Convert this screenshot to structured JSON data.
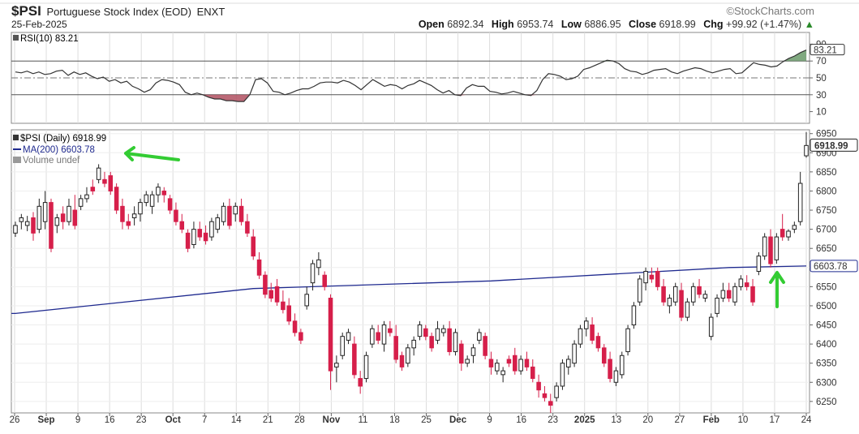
{
  "header": {
    "symbol": "$PSI",
    "description": "Portuguese Stock Index (EOD)",
    "exchange": "ENXT",
    "date": "25-Feb-2025",
    "brand": "©StockCharts.com",
    "open_label": "Open",
    "open": "6892.34",
    "high_label": "High",
    "high": "6953.74",
    "low_label": "Low",
    "low": "6886.95",
    "close_label": "Close",
    "close": "6918.99",
    "chg_label": "Chg",
    "chg": "+99.92 (+1.47%)",
    "chg_arrow": "▲"
  },
  "rsi_panel": {
    "legend": "RSI(10) 83.21",
    "current_label": "83.21",
    "y_ticks": [
      "90",
      "70",
      "50",
      "30",
      "10"
    ]
  },
  "price_panel": {
    "legend_price": "$PSI (Daily) 6918.99",
    "legend_ma": "MA(200) 6603.78",
    "legend_volume": "Volume undef",
    "last_price_label": "6918.99",
    "ma_label": "6603.78",
    "y_ticks": [
      "6950",
      "6900",
      "6850",
      "6800",
      "6750",
      "6700",
      "6650",
      "6600",
      "6550",
      "6500",
      "6450",
      "6400",
      "6350",
      "6300",
      "6250"
    ]
  },
  "x_axis": {
    "ticks": [
      "26",
      "Sep",
      "9",
      "16",
      "23",
      "Oct",
      "7",
      "14",
      "21",
      "28",
      "Nov",
      "11",
      "18",
      "25",
      "Dec",
      "9",
      "16",
      "23",
      "2025",
      "13",
      "20",
      "27",
      "Feb",
      "10",
      "17",
      "24"
    ],
    "bold_ticks": [
      "Sep",
      "Oct",
      "Nov",
      "Dec",
      "2025",
      "Feb"
    ]
  },
  "colors": {
    "up": "#ffffff",
    "down": "#d61f4a",
    "ma_line": "#1f2a8f",
    "rsi_line": "#333333",
    "arrow": "#33cc33",
    "grid": "#dddddd"
  },
  "chart_data": [
    {
      "type": "candlestick",
      "title": "$PSI (Daily) 6918.99",
      "ylim": [
        6220,
        6960
      ],
      "series": [
        {
          "name": "$PSI (Daily)",
          "ohlc": [
            [
              6690,
              6720,
              6680,
              6710
            ],
            [
              6720,
              6740,
              6700,
              6730
            ],
            [
              6710,
              6735,
              6695,
              6720
            ],
            [
              6730,
              6745,
              6670,
              6690
            ],
            [
              6700,
              6780,
              6690,
              6760
            ],
            [
              6720,
              6800,
              6700,
              6770
            ],
            [
              6770,
              6780,
              6640,
              6650
            ],
            [
              6710,
              6740,
              6690,
              6730
            ],
            [
              6740,
              6760,
              6700,
              6720
            ],
            [
              6720,
              6780,
              6710,
              6760
            ],
            [
              6750,
              6790,
              6700,
              6710
            ],
            [
              6760,
              6790,
              6750,
              6780
            ],
            [
              6780,
              6810,
              6770,
              6790
            ],
            [
              6810,
              6830,
              6790,
              6800
            ],
            [
              6830,
              6870,
              6820,
              6860
            ],
            [
              6830,
              6850,
              6810,
              6820
            ],
            [
              6840,
              6850,
              6790,
              6800
            ],
            [
              6810,
              6820,
              6740,
              6750
            ],
            [
              6760,
              6780,
              6700,
              6720
            ],
            [
              6720,
              6740,
              6700,
              6710
            ],
            [
              6730,
              6760,
              6710,
              6740
            ],
            [
              6740,
              6780,
              6720,
              6770
            ],
            [
              6770,
              6800,
              6760,
              6790
            ],
            [
              6760,
              6800,
              6740,
              6790
            ],
            [
              6790,
              6820,
              6770,
              6810
            ],
            [
              6800,
              6810,
              6770,
              6790
            ],
            [
              6780,
              6790,
              6740,
              6750
            ],
            [
              6750,
              6770,
              6710,
              6720
            ],
            [
              6720,
              6740,
              6690,
              6700
            ],
            [
              6690,
              6700,
              6640,
              6650
            ],
            [
              6660,
              6720,
              6650,
              6700
            ],
            [
              6700,
              6720,
              6670,
              6680
            ],
            [
              6690,
              6710,
              6660,
              6670
            ],
            [
              6680,
              6730,
              6670,
              6720
            ],
            [
              6700,
              6740,
              6690,
              6730
            ],
            [
              6720,
              6770,
              6710,
              6760
            ],
            [
              6760,
              6780,
              6700,
              6710
            ],
            [
              6740,
              6770,
              6720,
              6760
            ],
            [
              6760,
              6780,
              6710,
              6720
            ],
            [
              6720,
              6740,
              6680,
              6690
            ],
            [
              6680,
              6700,
              6620,
              6630
            ],
            [
              6620,
              6640,
              6570,
              6580
            ],
            [
              6580,
              6590,
              6520,
              6530
            ],
            [
              6540,
              6560,
              6510,
              6520
            ],
            [
              6550,
              6570,
              6500,
              6510
            ],
            [
              6510,
              6540,
              6480,
              6490
            ],
            [
              6500,
              6520,
              6450,
              6460
            ],
            [
              6460,
              6480,
              6420,
              6430
            ],
            [
              6430,
              6440,
              6400,
              6410
            ],
            [
              6500,
              6550,
              6490,
              6530
            ],
            [
              6560,
              6620,
              6540,
              6610
            ],
            [
              6600,
              6640,
              6580,
              6620
            ],
            [
              6580,
              6590,
              6540,
              6550
            ],
            [
              6520,
              6530,
              6280,
              6330
            ],
            [
              6340,
              6370,
              6300,
              6350
            ],
            [
              6370,
              6430,
              6360,
              6420
            ],
            [
              6410,
              6440,
              6400,
              6430
            ],
            [
              6400,
              6420,
              6310,
              6320
            ],
            [
              6310,
              6330,
              6270,
              6290
            ],
            [
              6310,
              6380,
              6300,
              6370
            ],
            [
              6400,
              6450,
              6390,
              6440
            ],
            [
              6430,
              6450,
              6400,
              6410
            ],
            [
              6400,
              6460,
              6380,
              6450
            ],
            [
              6440,
              6460,
              6420,
              6430
            ],
            [
              6420,
              6450,
              6350,
              6360
            ],
            [
              6370,
              6380,
              6330,
              6340
            ],
            [
              6350,
              6400,
              6340,
              6390
            ],
            [
              6390,
              6420,
              6370,
              6410
            ],
            [
              6420,
              6460,
              6410,
              6450
            ],
            [
              6440,
              6450,
              6410,
              6420
            ],
            [
              6420,
              6430,
              6380,
              6390
            ],
            [
              6410,
              6460,
              6400,
              6440
            ],
            [
              6430,
              6450,
              6420,
              6440
            ],
            [
              6440,
              6460,
              6370,
              6380
            ],
            [
              6380,
              6440,
              6370,
              6430
            ],
            [
              6400,
              6410,
              6330,
              6350
            ],
            [
              6350,
              6370,
              6340,
              6360
            ],
            [
              6370,
              6400,
              6350,
              6390
            ],
            [
              6410,
              6440,
              6400,
              6430
            ],
            [
              6420,
              6430,
              6360,
              6370
            ],
            [
              6360,
              6380,
              6320,
              6340
            ],
            [
              6330,
              6360,
              6320,
              6350
            ],
            [
              6320,
              6340,
              6300,
              6330
            ],
            [
              6360,
              6370,
              6340,
              6350
            ],
            [
              6370,
              6390,
              6320,
              6330
            ],
            [
              6330,
              6370,
              6320,
              6360
            ],
            [
              6360,
              6380,
              6330,
              6340
            ],
            [
              6340,
              6360,
              6300,
              6310
            ],
            [
              6300,
              6320,
              6260,
              6280
            ],
            [
              6270,
              6290,
              6250,
              6260
            ],
            [
              6250,
              6270,
              6220,
              6240
            ],
            [
              6260,
              6300,
              6250,
              6290
            ],
            [
              6290,
              6360,
              6280,
              6350
            ],
            [
              6340,
              6370,
              6320,
              6360
            ],
            [
              6350,
              6410,
              6340,
              6400
            ],
            [
              6400,
              6450,
              6390,
              6440
            ],
            [
              6440,
              6470,
              6420,
              6460
            ],
            [
              6450,
              6470,
              6400,
              6410
            ],
            [
              6420,
              6430,
              6380,
              6390
            ],
            [
              6390,
              6400,
              6340,
              6350
            ],
            [
              6360,
              6380,
              6300,
              6310
            ],
            [
              6300,
              6340,
              6290,
              6330
            ],
            [
              6320,
              6380,
              6310,
              6370
            ],
            [
              6380,
              6450,
              6370,
              6440
            ],
            [
              6450,
              6510,
              6440,
              6500
            ],
            [
              6510,
              6580,
              6500,
              6570
            ],
            [
              6560,
              6600,
              6540,
              6590
            ],
            [
              6580,
              6600,
              6560,
              6570
            ],
            [
              6590,
              6600,
              6540,
              6550
            ],
            [
              6550,
              6570,
              6500,
              6510
            ],
            [
              6500,
              6530,
              6480,
              6520
            ],
            [
              6510,
              6560,
              6500,
              6550
            ],
            [
              6540,
              6560,
              6460,
              6470
            ],
            [
              6470,
              6520,
              6460,
              6510
            ],
            [
              6510,
              6560,
              6500,
              6550
            ],
            [
              6550,
              6570,
              6520,
              6530
            ],
            [
              6520,
              6540,
              6510,
              6530
            ],
            [
              6420,
              6480,
              6410,
              6470
            ],
            [
              6480,
              6530,
              6470,
              6520
            ],
            [
              6520,
              6560,
              6510,
              6540
            ],
            [
              6540,
              6560,
              6510,
              6520
            ],
            [
              6510,
              6560,
              6500,
              6550
            ],
            [
              6550,
              6580,
              6540,
              6570
            ],
            [
              6560,
              6580,
              6540,
              6550
            ],
            [
              6550,
              6570,
              6500,
              6510
            ],
            [
              6590,
              6640,
              6580,
              6630
            ],
            [
              6630,
              6690,
              6620,
              6680
            ],
            [
              6680,
              6700,
              6600,
              6610
            ],
            [
              6620,
              6690,
              6610,
              6680
            ],
            [
              6700,
              6740,
              6670,
              6680
            ],
            [
              6680,
              6700,
              6670,
              6695
            ],
            [
              6700,
              6720,
              6690,
              6710
            ],
            [
              6720,
              6850,
              6710,
              6820
            ],
            [
              6892,
              6954,
              6887,
              6919
            ]
          ]
        },
        {
          "name": "MA(200)",
          "x_index": [
            0,
            40,
            80,
            120,
            137
          ],
          "values": [
            6480,
            6545,
            6565,
            6600,
            6604
          ]
        }
      ]
    },
    {
      "type": "line",
      "title": "RSI(10) 83.21",
      "ylim": [
        0,
        100
      ],
      "series": [
        {
          "name": "RSI(10)",
          "values": [
            57,
            56,
            58,
            55,
            57,
            54,
            55,
            58,
            59,
            53,
            57,
            54,
            56,
            52,
            49,
            51,
            46,
            48,
            44,
            46,
            40,
            37,
            33,
            36,
            44,
            48,
            47,
            45,
            42,
            33,
            30,
            32,
            30,
            27,
            25,
            25,
            23,
            23,
            22,
            22,
            30,
            48,
            49,
            44,
            34,
            33,
            30,
            32,
            35,
            37,
            37,
            40,
            44,
            45,
            45,
            44,
            47,
            45,
            41,
            36,
            42,
            48,
            44,
            40,
            42,
            41,
            37,
            41,
            43,
            47,
            44,
            41,
            36,
            32,
            35,
            30,
            29,
            38,
            42,
            40,
            40,
            34,
            33,
            31,
            32,
            34,
            32,
            30,
            29,
            35,
            48,
            55,
            54,
            52,
            48,
            49,
            52,
            60,
            62,
            65,
            68,
            71,
            70,
            67,
            61,
            58,
            57,
            54,
            56,
            59,
            60,
            61,
            57,
            55,
            58,
            60,
            62,
            61,
            58,
            56,
            58,
            60,
            61,
            55,
            56,
            62,
            68,
            66,
            65,
            63,
            64,
            69,
            73,
            76,
            80,
            83
          ]
        }
      ]
    }
  ]
}
